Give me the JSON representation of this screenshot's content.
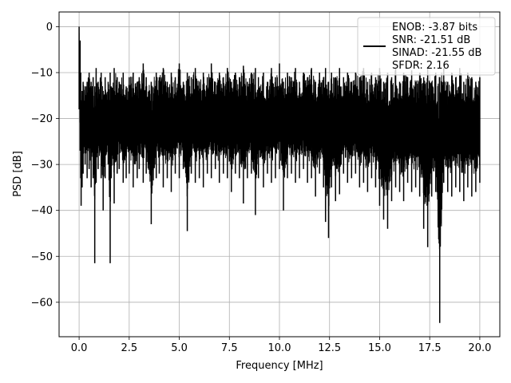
{
  "chart_data": {
    "type": "line",
    "xlabel": "Frequency [MHz]",
    "ylabel": "PSD [dB]",
    "xlim": [
      -1.0,
      21.0
    ],
    "ylim": [
      -67.5,
      3.2
    ],
    "grid": true,
    "xticks": [
      0.0,
      2.5,
      5.0,
      7.5,
      10.0,
      12.5,
      15.0,
      17.5,
      20.0
    ],
    "xtick_labels": [
      "0.0",
      "2.5",
      "5.0",
      "7.5",
      "10.0",
      "12.5",
      "15.0",
      "17.5",
      "20.0"
    ],
    "yticks": [
      0,
      -10,
      -20,
      -30,
      -40,
      -50,
      -60
    ],
    "ytick_labels": [
      "0",
      "−10",
      "−20",
      "−30",
      "−40",
      "−50",
      "−60"
    ],
    "legend": {
      "placement": "upper right",
      "entries": [
        "ENOB: -3.87 bits",
        "SNR: -21.51 dB",
        "SINAD: -21.55 dB",
        "SFDR: 2.16"
      ]
    },
    "series": [
      {
        "color": "#000000",
        "x": [
          0.0,
          0.05,
          0.08,
          0.1,
          0.15,
          0.2,
          0.3,
          0.4,
          0.5,
          0.6,
          0.7,
          0.78,
          0.85,
          0.95,
          1.1,
          1.2,
          1.3,
          1.45,
          1.55,
          1.6,
          1.75,
          1.9,
          2.0,
          2.2,
          2.35,
          2.5,
          2.7,
          2.9,
          3.0,
          3.2,
          3.35,
          3.6,
          3.85,
          4.0,
          4.2,
          4.4,
          4.6,
          4.8,
          5.0,
          5.2,
          5.4,
          5.6,
          5.8,
          6.0,
          6.2,
          6.4,
          6.6,
          6.8,
          7.0,
          7.2,
          7.4,
          7.6,
          7.8,
          8.0,
          8.2,
          8.4,
          8.6,
          8.8,
          8.95,
          9.2,
          9.4,
          9.6,
          9.8,
          10.0,
          10.2,
          10.4,
          10.6,
          10.8,
          11.0,
          11.2,
          11.4,
          11.6,
          11.8,
          12.0,
          12.2,
          12.3,
          12.45,
          12.6,
          12.8,
          13.0,
          13.2,
          13.4,
          13.6,
          13.8,
          14.0,
          14.2,
          14.4,
          14.6,
          14.8,
          15.0,
          15.2,
          15.4,
          15.6,
          15.8,
          16.0,
          16.2,
          16.4,
          16.6,
          16.8,
          17.0,
          17.2,
          17.4,
          17.6,
          17.8,
          18.0,
          18.2,
          18.4,
          18.6,
          18.8,
          19.0,
          19.2,
          19.4,
          19.6,
          19.8,
          20.0
        ],
        "y_high": [
          0.0,
          -3.0,
          -10.0,
          -16.0,
          -14.0,
          -12.0,
          -13.0,
          -12.0,
          -10.0,
          -12.0,
          -11.0,
          -13.0,
          -9.0,
          -12.0,
          -10.0,
          -14.0,
          -11.0,
          -12.0,
          -10.0,
          -13.0,
          -9.0,
          -11.0,
          -12.0,
          -10.0,
          -13.0,
          -11.0,
          -10.0,
          -12.0,
          -11.0,
          -8.0,
          -11.0,
          -12.0,
          -10.0,
          -11.0,
          -9.0,
          -12.0,
          -10.0,
          -11.0,
          -8.0,
          -12.0,
          -10.0,
          -11.0,
          -9.0,
          -12.0,
          -10.0,
          -11.0,
          -8.0,
          -12.0,
          -10.0,
          -11.0,
          -9.0,
          -12.0,
          -10.0,
          -11.0,
          -8.5,
          -12.0,
          -10.0,
          -9.0,
          -11.0,
          -10.0,
          -12.0,
          -9.0,
          -11.0,
          -8.0,
          -12.0,
          -10.0,
          -11.0,
          -9.0,
          -12.0,
          -10.0,
          -11.0,
          -9.0,
          -12.0,
          -10.0,
          -11.0,
          -9.0,
          -12.0,
          -10.0,
          -11.0,
          -9.0,
          -11.0,
          -10.0,
          -12.0,
          -10.0,
          -11.0,
          -9.0,
          -12.0,
          -10.0,
          -11.0,
          -9.0,
          -12.0,
          -10.0,
          -11.0,
          -9.0,
          -12.0,
          -10.0,
          -11.0,
          -9.5,
          -12.0,
          -10.0,
          -11.0,
          -9.0,
          -12.0,
          -10.0,
          -11.0,
          -9.0,
          -12.0,
          -10.0,
          -11.0,
          -9.0,
          -12.0,
          -10.0,
          -11.0,
          -12.0,
          -11.0
        ],
        "y_low": [
          -18.0,
          -27.0,
          -33.0,
          -39.0,
          -35.0,
          -32.0,
          -30.0,
          -33.0,
          -31.0,
          -35.0,
          -33.0,
          -51.5,
          -34.0,
          -31.0,
          -33.0,
          -40.0,
          -33.0,
          -30.0,
          -51.5,
          -33.0,
          -38.5,
          -32.0,
          -31.0,
          -34.0,
          -33.0,
          -32.0,
          -35.0,
          -33.0,
          -31.0,
          -34.0,
          -32.0,
          -43.0,
          -33.0,
          -32.0,
          -35.0,
          -33.0,
          -36.0,
          -32.0,
          -33.0,
          -31.0,
          -44.5,
          -32.0,
          -34.0,
          -33.0,
          -35.0,
          -32.0,
          -33.0,
          -31.0,
          -34.0,
          -32.0,
          -33.0,
          -36.0,
          -32.0,
          -33.0,
          -38.5,
          -33.0,
          -32.0,
          -41.0,
          -33.0,
          -35.0,
          -32.0,
          -34.0,
          -33.0,
          -31.0,
          -40.0,
          -33.0,
          -32.0,
          -34.0,
          -33.0,
          -31.0,
          -34.0,
          -33.0,
          -37.0,
          -32.0,
          -35.0,
          -42.5,
          -46.0,
          -35.0,
          -38.0,
          -36.5,
          -32.0,
          -34.0,
          -33.0,
          -32.0,
          -35.0,
          -34.0,
          -36.0,
          -33.0,
          -35.0,
          -39.0,
          -42.0,
          -44.0,
          -38.0,
          -35.0,
          -36.0,
          -38.0,
          -34.0,
          -36.0,
          -35.0,
          -37.0,
          -44.0,
          -48.0,
          -37.0,
          -36.0,
          -64.5,
          -34.0,
          -36.0,
          -37.0,
          -35.0,
          -36.0,
          -38.0,
          -35.0,
          -37.0,
          -36.0,
          -34.0
        ]
      }
    ]
  }
}
